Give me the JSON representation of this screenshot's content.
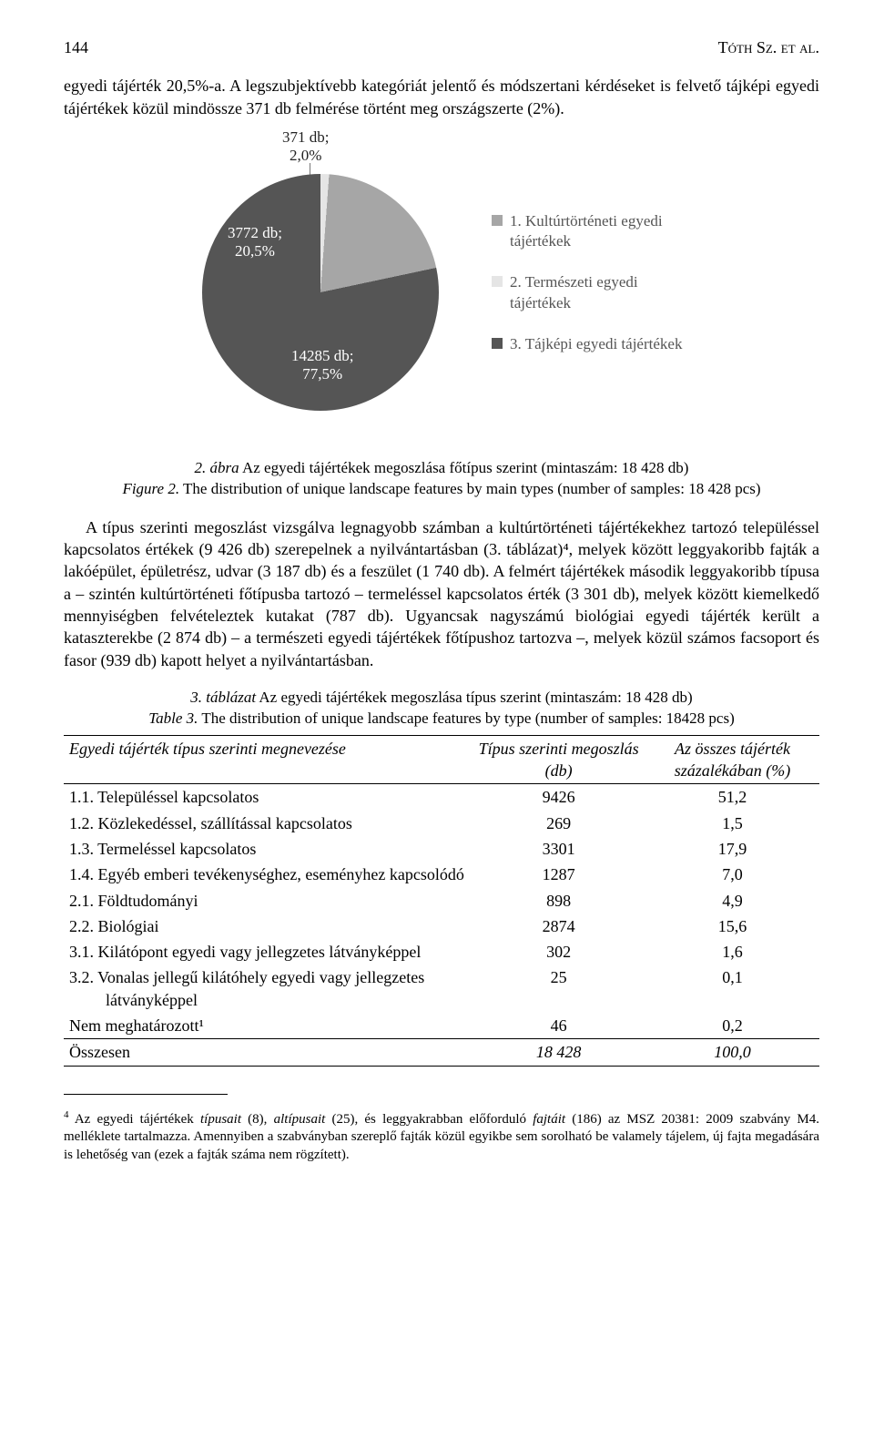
{
  "header": {
    "page_number": "144",
    "running_author": "Tóth Sz. et al."
  },
  "intro_paragraph": "egyedi tájérték 20,5%-a. A legszubjektívebb kategóriát jelentő és módszertani kérdéseket is felvető tájképi egyedi tájértékek közül mindössze 371 db felmérése történt meg országszerte (2%).",
  "pie_chart": {
    "type": "pie",
    "background_color": "#ffffff",
    "slices": [
      {
        "label": "371 db;\n2,0%",
        "value": 2.0,
        "color": "#e5e5e5",
        "label_color": "#222222"
      },
      {
        "label": "3772 db;\n20,5%",
        "value": 20.5,
        "color": "#a6a6a6",
        "label_color": "#ffffff"
      },
      {
        "label": "14285 db;\n77,5%",
        "value": 77.5,
        "color": "#555555",
        "label_color": "#ffffff"
      }
    ],
    "legend": [
      {
        "swatch": "#a6a6a6",
        "text": "1. Kultúrtörténeti egyedi tájértékek"
      },
      {
        "swatch": "#e5e5e5",
        "text": "2. Természeti egyedi tájértékek"
      },
      {
        "swatch": "#555555",
        "text": "3. Tájképi egyedi tájértékek"
      }
    ],
    "start_angle_deg": -3
  },
  "figure_caption": {
    "label_hu": "2. ábra",
    "text_hu": " Az egyedi tájértékek megoszlása főtípus szerint (mintaszám: 18 428 db)",
    "label_en": "Figure 2.",
    "text_en": " The distribution of unique landscape features by main types (number of samples: 18 428 pcs)"
  },
  "body_paragraph": "A típus szerinti megoszlást vizsgálva legnagyobb számban a kultúrtörténeti tájértékekhez tartozó településsel kapcsolatos értékek (9 426 db) szerepelnek a nyilvántartásban (3. táblázat)⁴, melyek között leggyakoribb fajták a lakóépület, épületrész, udvar (3 187 db) és a feszület (1 740 db). A felmért tájértékek második leggyakoribb típusa a – szintén kultúrtörténeti főtípusba tartozó – termeléssel kapcsolatos érték (3 301 db), melyek között kiemelkedő mennyiségben felvételeztek kutakat (787 db). Ugyancsak nagyszámú biológiai egyedi tájérték került a kataszterekbe (2 874 db) – a természeti egyedi tájértékek főtípushoz tartozva –, melyek közül számos facsoport és fasor (939 db) kapott helyet a nyilvántartásban.",
  "table_caption": {
    "label_hu": "3. táblázat",
    "text_hu": " Az egyedi tájértékek megoszlása típus szerint (mintaszám: 18 428 db)",
    "label_en": "Table 3.",
    "text_en": " The distribution of unique landscape features by type (number of samples: 18428 pcs)"
  },
  "table": {
    "columns": [
      "Egyedi tájérték típus szerinti megnevezése",
      "Típus szerinti megoszlás (db)",
      "Az összes tájérték százalékában (%)"
    ],
    "rows": [
      {
        "name": "1.1. Településsel kapcsolatos",
        "count": "9426",
        "pct": "51,2"
      },
      {
        "name": "1.2. Közlekedéssel, szállítással kapcsolatos",
        "count": "269",
        "pct": "1,5"
      },
      {
        "name": "1.3. Termeléssel kapcsolatos",
        "count": "3301",
        "pct": "17,9"
      },
      {
        "name": "1.4. Egyéb emberi tevékenységhez, eseményhez kapcsolódó",
        "count": "1287",
        "pct": "7,0",
        "wrap_indent": true
      },
      {
        "name": "2.1. Földtudományi",
        "count": "898",
        "pct": "4,9"
      },
      {
        "name": "2.2. Biológiai",
        "count": "2874",
        "pct": "15,6"
      },
      {
        "name": "3.1. Kilátópont egyedi vagy jellegzetes látványképpel",
        "count": "302",
        "pct": "1,6"
      },
      {
        "name": "3.2. Vonalas jellegű kilátóhely egyedi vagy jellegzetes látványképpel",
        "count": "25",
        "pct": "0,1",
        "wrap_indent": true
      },
      {
        "name": "Nem meghatározott¹",
        "count": "46",
        "pct": "0,2"
      }
    ],
    "total": {
      "name": "Összesen",
      "count": "18 428",
      "pct": "100,0"
    }
  },
  "footnote": {
    "marker": "4",
    "text_before": " Az egyedi tájértékek ",
    "italic1": "típusait",
    "mid1": " (8), ",
    "italic2": "altípusait",
    "mid2": " (25), és leggyakrabban előforduló ",
    "italic3": "fajtáit",
    "text_after": " (186) az MSZ 20381: 2009 szabvány M4. melléklete tartalmazza. Amennyiben a szabványban szereplő fajták közül egyikbe sem sorolható be valamely tájelem, új fajta megadására is lehetőség van (ezek a fajták száma nem rögzített)."
  }
}
